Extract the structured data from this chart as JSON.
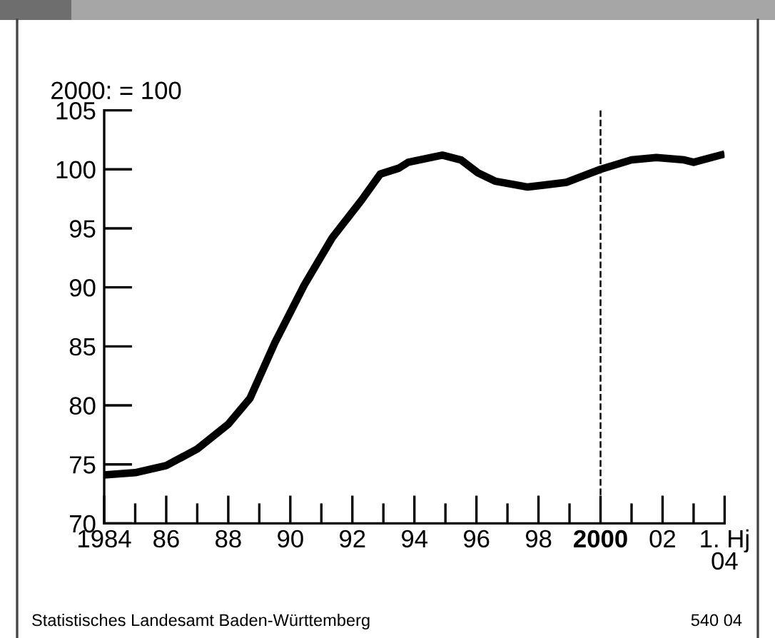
{
  "chart_data": {
    "type": "line",
    "ylabel": "2000: = 100",
    "series": [
      {
        "color": "#000000",
        "x": [
          1984,
          1985,
          1986,
          1987,
          1988,
          1988.7,
          1989.5,
          1990.45,
          1991.35,
          1992.3,
          1992.9,
          1993.5,
          1993.8,
          1994.9,
          1995.5,
          1996.05,
          1996.6,
          1997.65,
          1998.9,
          2000,
          2001,
          2001.8,
          2002.7,
          2003,
          2004
        ],
        "values": [
          74.1,
          74.3,
          74.9,
          76.3,
          78.4,
          80.6,
          85.3,
          90.2,
          94.2,
          97.4,
          99.6,
          100.1,
          100.6,
          101.2,
          100.8,
          99.7,
          99.0,
          98.5,
          98.9,
          100,
          100.8,
          101.0,
          100.8,
          100.6,
          101.3
        ]
      }
    ],
    "xlim": [
      1984,
      2004
    ],
    "ylim": [
      70,
      105
    ],
    "xticks": [
      1984,
      {
        "value": 1985,
        "label": null
      },
      {
        "value": 1986,
        "label": "86"
      },
      {
        "value": 1987,
        "label": null
      },
      {
        "value": 1988,
        "label": "88"
      },
      {
        "value": 1989,
        "label": null
      },
      {
        "value": 1990,
        "label": "90"
      },
      {
        "value": 1991,
        "label": null
      },
      {
        "value": 1992,
        "label": "92"
      },
      {
        "value": 1993,
        "label": null
      },
      {
        "value": 1994,
        "label": "94"
      },
      {
        "value": 1995,
        "label": null
      },
      {
        "value": 1996,
        "label": "96"
      },
      {
        "value": 1997,
        "label": null
      },
      {
        "value": 1998,
        "label": "98"
      },
      {
        "value": 1999,
        "label": null
      },
      2000,
      {
        "value": 2001,
        "label": null
      },
      {
        "value": 2002,
        "label": "02"
      },
      {
        "value": 2003,
        "label": null
      },
      {
        "value": 2004,
        "label": "1. Hj\n04"
      }
    ],
    "yticks": [
      70,
      75,
      80,
      85,
      90,
      95,
      100,
      105
    ],
    "ref_lines": [
      {
        "axis": "x",
        "value": 2000,
        "color": "#000000",
        "line_style": "dashed"
      }
    ],
    "marker": "none",
    "line_style": "solid",
    "grid": false,
    "legend": false,
    "annotations": [
      "Statistisches Landesamt Baden-Württemberg",
      "540 04"
    ]
  }
}
